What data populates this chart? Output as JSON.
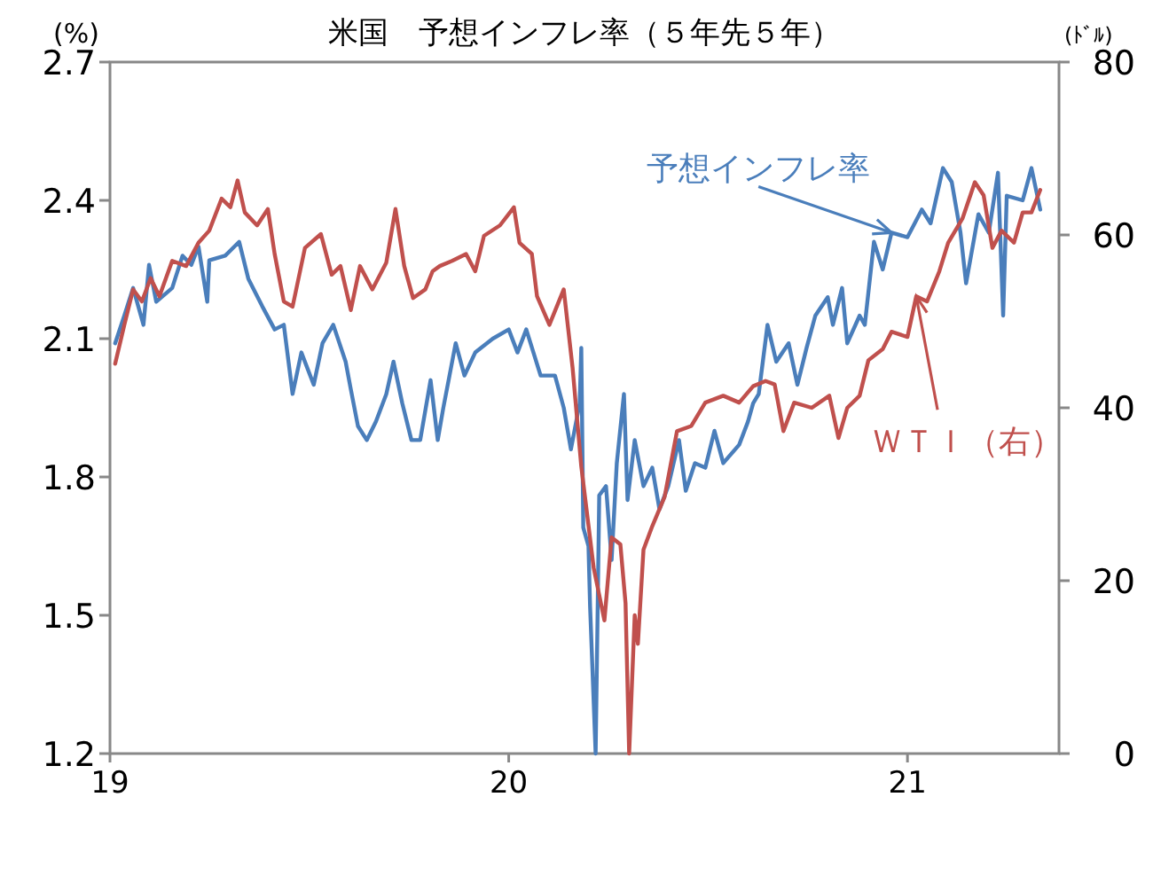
{
  "chart_data": {
    "type": "line",
    "title": "米国　予想インフレ率（５年先５年）",
    "ylabel": "(%)",
    "y2label": "(ﾄﾞﾙ)",
    "xlim": [
      2019,
      2021.38
    ],
    "xticks": [
      {
        "value": 2019,
        "label": "19"
      },
      {
        "value": 2020,
        "label": "20"
      },
      {
        "value": 2021,
        "label": "21"
      }
    ],
    "ylim": [
      1.2,
      2.7
    ],
    "yticks": [
      1.2,
      1.5,
      1.8,
      2.1,
      2.4,
      2.7
    ],
    "y2lim": [
      0,
      80
    ],
    "y2ticks": [
      0,
      20,
      40,
      60,
      80
    ],
    "grid": false,
    "legend": false,
    "series": [
      {
        "name": "予想インフレ率",
        "color": "#4a7ebb",
        "x": [
          2019.013,
          2019.036,
          2019.058,
          2019.084,
          2019.098,
          2019.116,
          2019.156,
          2019.182,
          2019.204,
          2019.222,
          2019.244,
          2019.249,
          2019.289,
          2019.324,
          2019.347,
          2019.382,
          2019.413,
          2019.436,
          2019.458,
          2019.48,
          2019.511,
          2019.533,
          2019.56,
          2019.591,
          2019.604,
          2019.622,
          2019.644,
          2019.667,
          2019.693,
          2019.711,
          2019.733,
          2019.756,
          2019.778,
          2019.804,
          2019.822,
          2019.836,
          2019.867,
          2019.889,
          2019.916,
          2019.96,
          2020.0,
          2020.022,
          2020.044,
          2020.08,
          2020.116,
          2020.138,
          2020.156,
          2020.178,
          2020.182,
          2020.187,
          2020.2,
          2020.204,
          2020.218,
          2020.227,
          2020.244,
          2020.258,
          2020.271,
          2020.289,
          2020.298,
          2020.316,
          2020.338,
          2020.36,
          2020.378,
          2020.4,
          2020.427,
          2020.444,
          2020.467,
          2020.493,
          2020.516,
          2020.538,
          2020.578,
          2020.6,
          2020.613,
          2020.627,
          2020.649,
          2020.671,
          2020.702,
          2020.724,
          2020.747,
          2020.769,
          2020.8,
          2020.813,
          2020.836,
          2020.849,
          2020.88,
          2020.893,
          2020.916,
          2020.938,
          2020.96,
          2021.0,
          2021.036,
          2021.058,
          2021.089,
          2021.111,
          2021.133,
          2021.147,
          2021.178,
          2021.204,
          2021.227,
          2021.24,
          2021.249,
          2021.289,
          2021.311,
          2021.333
        ],
        "values": [
          2.09,
          2.15,
          2.21,
          2.13,
          2.26,
          2.18,
          2.21,
          2.28,
          2.26,
          2.3,
          2.18,
          2.27,
          2.28,
          2.31,
          2.23,
          2.17,
          2.12,
          2.13,
          1.98,
          2.07,
          2.0,
          2.09,
          2.13,
          2.05,
          1.99,
          1.91,
          1.88,
          1.92,
          1.98,
          2.05,
          1.96,
          1.88,
          1.88,
          2.01,
          1.88,
          1.95,
          2.09,
          2.02,
          2.07,
          2.1,
          2.12,
          2.07,
          2.12,
          2.02,
          2.02,
          1.95,
          1.86,
          1.96,
          2.08,
          1.69,
          1.65,
          1.52,
          1.2,
          1.76,
          1.78,
          1.62,
          1.83,
          1.98,
          1.75,
          1.88,
          1.78,
          1.82,
          1.73,
          1.78,
          1.88,
          1.77,
          1.83,
          1.82,
          1.9,
          1.83,
          1.87,
          1.92,
          1.96,
          1.98,
          2.13,
          2.05,
          2.09,
          2.0,
          2.08,
          2.15,
          2.19,
          2.13,
          2.21,
          2.09,
          2.15,
          2.13,
          2.31,
          2.25,
          2.33,
          2.32,
          2.38,
          2.35,
          2.47,
          2.44,
          2.33,
          2.22,
          2.37,
          2.33,
          2.46,
          2.15,
          2.41,
          2.4,
          2.47,
          2.38
        ]
      },
      {
        "name": "ＷＴＩ（右）",
        "axis": "y2",
        "color": "#c0504d",
        "x": [
          2019.013,
          2019.036,
          2019.058,
          2019.08,
          2019.102,
          2019.124,
          2019.156,
          2019.191,
          2019.222,
          2019.249,
          2019.28,
          2019.302,
          2019.32,
          2019.338,
          2019.369,
          2019.396,
          2019.413,
          2019.436,
          2019.458,
          2019.489,
          2019.529,
          2019.556,
          2019.578,
          2019.604,
          2019.627,
          2019.658,
          2019.693,
          2019.716,
          2019.738,
          2019.76,
          2019.791,
          2019.809,
          2019.827,
          2019.858,
          2019.893,
          2019.916,
          2019.938,
          2019.978,
          2020.013,
          2020.027,
          2020.058,
          2020.071,
          2020.102,
          2020.138,
          2020.16,
          2020.182,
          2020.213,
          2020.24,
          2020.258,
          2020.28,
          2020.293,
          2020.302,
          2020.316,
          2020.324,
          2020.338,
          2020.36,
          2020.391,
          2020.422,
          2020.458,
          2020.493,
          2020.538,
          2020.578,
          2020.613,
          2020.644,
          2020.667,
          2020.689,
          2020.716,
          2020.76,
          2020.804,
          2020.827,
          2020.849,
          2020.88,
          2020.902,
          2020.938,
          2020.96,
          2021.0,
          2021.022,
          2021.049,
          2021.08,
          2021.102,
          2021.138,
          2021.169,
          2021.191,
          2021.213,
          2021.236,
          2021.267,
          2021.289,
          2021.311,
          2021.333
        ],
        "values": [
          45.1,
          49.6,
          53.7,
          52.3,
          55.0,
          52.9,
          57.0,
          56.4,
          59.1,
          60.5,
          64.2,
          63.2,
          66.3,
          62.6,
          61.1,
          63.0,
          57.8,
          52.3,
          51.7,
          58.5,
          60.1,
          55.4,
          56.4,
          51.3,
          56.4,
          53.7,
          56.8,
          63.0,
          56.4,
          52.7,
          53.7,
          55.8,
          56.4,
          57.0,
          57.8,
          55.8,
          59.9,
          61.1,
          63.2,
          59.1,
          57.8,
          52.9,
          49.6,
          53.7,
          44.7,
          33.2,
          21.5,
          15.4,
          25.0,
          24.2,
          17.4,
          0,
          16.0,
          12.7,
          23.6,
          26.3,
          29.7,
          37.3,
          37.9,
          40.6,
          41.4,
          40.6,
          42.5,
          43.1,
          42.7,
          37.3,
          40.6,
          40.0,
          41.4,
          36.5,
          40.0,
          41.4,
          45.5,
          46.8,
          48.8,
          48.2,
          52.9,
          52.3,
          55.8,
          59.1,
          61.9,
          66.1,
          64.6,
          58.5,
          60.5,
          59.1,
          62.6,
          62.6,
          65.2
        ]
      }
    ]
  }
}
